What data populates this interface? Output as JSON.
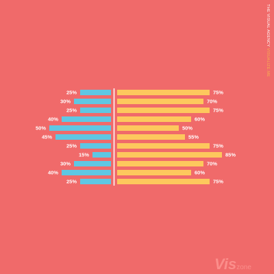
{
  "colors": {
    "background": "#f06a6a",
    "left_bar": "#5fc7e3",
    "right_bar": "#fdc85d",
    "label_text": "#ffffff"
  },
  "agency": {
    "name": "THE VISUAL AGENCY",
    "subtitle": "VISUALIZE.ME"
  },
  "logo": {
    "main": "Vis",
    "sub": "zone"
  },
  "chart_data": {
    "type": "bar",
    "orientation": "diverging-horizontal",
    "value_unit": "%",
    "series": [
      {
        "name": "",
        "side": "left",
        "values": [
          25,
          30,
          25,
          40,
          50,
          45,
          25,
          15,
          30,
          40,
          25
        ]
      },
      {
        "name": "",
        "side": "right",
        "values": [
          75,
          70,
          75,
          60,
          50,
          55,
          75,
          85,
          70,
          60,
          75
        ]
      }
    ],
    "labels_left": [
      "25%",
      "30%",
      "25%",
      "40%",
      "50%",
      "45%",
      "25%",
      "15%",
      "30%",
      "40%",
      "25%"
    ],
    "labels_right": [
      "75%",
      "70%",
      "75%",
      "60%",
      "50%",
      "55%",
      "75%",
      "85%",
      "70%",
      "60%",
      "75%"
    ],
    "xlim": [
      0,
      100
    ],
    "grid": false,
    "legend": "none"
  }
}
